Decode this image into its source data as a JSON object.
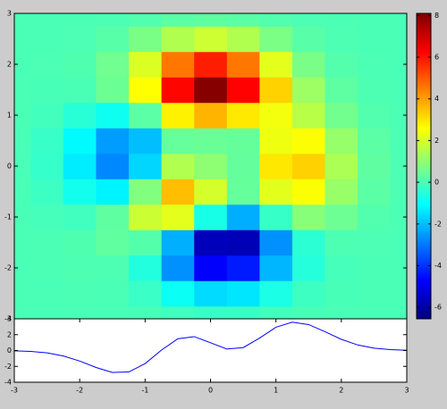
{
  "chart_data": [
    {
      "type": "heatmap",
      "x": [
        -3,
        -2.5,
        -2,
        -1.5,
        -1,
        -0.5,
        0,
        0.5,
        1,
        1.5,
        2,
        2.5,
        3
      ],
      "y": [
        -3,
        -2.5,
        -2,
        -1.5,
        -1,
        -0.5,
        0,
        0.5,
        1,
        1.5,
        2,
        2.5,
        3
      ],
      "values": [
        [
          0,
          0,
          0,
          0,
          -0.03,
          -0.14,
          -0.24,
          -0.22,
          -0.11,
          -0.03,
          0,
          0,
          0
        ],
        [
          0,
          0,
          0.01,
          0,
          -0.23,
          -0.91,
          -1.57,
          -1.41,
          -0.69,
          -0.18,
          -0.03,
          0,
          0
        ],
        [
          0,
          0.01,
          0.05,
          0.04,
          -0.59,
          -2.64,
          -4.76,
          -4.35,
          -2.1,
          -0.53,
          -0.06,
          0,
          0
        ],
        [
          0,
          0.01,
          0.08,
          0.33,
          0.15,
          -2.19,
          -5.68,
          -5.76,
          -2.64,
          -0.44,
          0.04,
          0.03,
          0
        ],
        [
          -0.01,
          -0.06,
          -0.13,
          0.3,
          1.86,
          2.22,
          -0.72,
          -2.22,
          -0.27,
          0.88,
          0.5,
          0.11,
          0.01
        ],
        [
          -0.03,
          -0.2,
          -0.8,
          -1.21,
          0.8,
          3.55,
          2.0,
          0.39,
          2.2,
          2.56,
          1.12,
          0.24,
          0.03
        ],
        [
          -0.04,
          -0.3,
          -1.33,
          -2.77,
          -1.65,
          1.48,
          0.98,
          0.37,
          2.94,
          3.27,
          1.41,
          0.3,
          0.03
        ],
        [
          -0.03,
          -0.25,
          -1.12,
          -2.49,
          -2.0,
          0.39,
          0.46,
          0.38,
          2.38,
          2.56,
          1.09,
          0.23,
          0.03
        ],
        [
          -0.01,
          -0.11,
          -0.48,
          -0.86,
          0.23,
          2.79,
          3.69,
          2.93,
          2.43,
          1.58,
          0.58,
          0.11,
          0.01
        ],
        [
          0,
          -0.02,
          -0.01,
          0.48,
          2.61,
          6.2,
          8.0,
          6.25,
          3.25,
          1.19,
          0.29,
          0.05,
          0
        ],
        [
          0,
          0.01,
          0.08,
          0.55,
          2.1,
          4.56,
          5.86,
          4.57,
          2.21,
          0.68,
          0.13,
          0.02,
          0
        ],
        [
          0,
          0,
          0.03,
          0.19,
          0.69,
          1.47,
          1.88,
          1.47,
          0.7,
          0.2,
          0.04,
          0,
          0
        ],
        [
          0,
          0,
          0.01,
          0.03,
          0.11,
          0.23,
          0.3,
          0.23,
          0.11,
          0.03,
          0.01,
          0,
          0
        ]
      ],
      "xlim": [
        -3,
        3
      ],
      "ylim": [
        -3,
        3
      ],
      "yticks": [
        -3,
        -2,
        -1,
        0,
        1,
        2,
        3
      ],
      "colormap": [
        "#000080",
        "#0000ff",
        "#0080ff",
        "#00ffff",
        "#80ff80",
        "#ffff00",
        "#ff8000",
        "#ff0000",
        "#800000"
      ],
      "colorbar": {
        "lim": [
          -6.55,
          8.1
        ],
        "ticks": [
          -6,
          -4,
          -2,
          0,
          2,
          4,
          6,
          8
        ]
      }
    },
    {
      "type": "line",
      "x": [
        -3,
        -2.75,
        -2.5,
        -2.25,
        -2,
        -1.75,
        -1.5,
        -1.25,
        -1,
        -0.75,
        -0.5,
        -0.25,
        0,
        0.25,
        0.5,
        0.75,
        1,
        1.25,
        1.5,
        1.75,
        2,
        2.25,
        2.5,
        2.75,
        3
      ],
      "series": [
        {
          "color": "#0000ff",
          "values": [
            -0.04,
            -0.11,
            -0.3,
            -0.69,
            -1.33,
            -2.14,
            -2.77,
            -2.71,
            -1.65,
            0.06,
            1.48,
            1.75,
            0.98,
            0.19,
            0.37,
            1.57,
            2.94,
            3.58,
            3.27,
            2.37,
            1.41,
            0.7,
            0.3,
            0.11,
            0.03
          ]
        }
      ],
      "xlim": [
        -3,
        3
      ],
      "xticks": [
        -3,
        -2,
        -1,
        0,
        1,
        2,
        3
      ],
      "ylim": [
        -4,
        4
      ],
      "yticks": [
        -4,
        -2,
        0,
        2,
        4
      ]
    }
  ]
}
